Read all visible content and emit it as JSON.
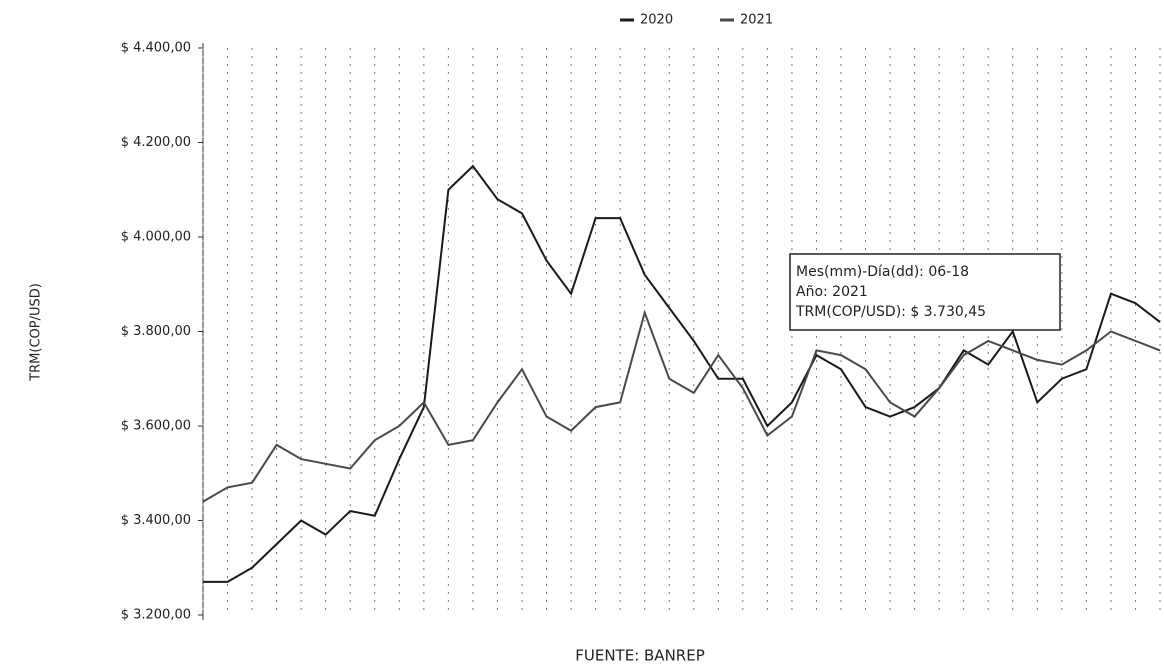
{
  "chart_data": {
    "type": "line",
    "y_label": "TRM(COP/USD)",
    "source": "FUENTE: BANREP",
    "categories": [
      null,
      null,
      null,
      null,
      null,
      null,
      null,
      null,
      null,
      null,
      null,
      null,
      null,
      null,
      null,
      null,
      null,
      null,
      null,
      null,
      null,
      null,
      null,
      null,
      null,
      null,
      null,
      null,
      null,
      null,
      null,
      null,
      null,
      null,
      null,
      null,
      null,
      null,
      null,
      null
    ],
    "series": [
      {
        "name": "2020",
        "color": "#1a1a1a",
        "values": [
          3270,
          3270,
          3300,
          3350,
          3400,
          3370,
          3420,
          3410,
          3530,
          3640,
          4100,
          4150,
          4080,
          4050,
          3950,
          3880,
          4040,
          4040,
          3920,
          3850,
          3780,
          3700,
          3700,
          3600,
          3650,
          3750,
          3720,
          3640,
          3620,
          3640,
          3680,
          3760,
          3730,
          3800,
          3650,
          3700,
          3720,
          3880,
          3860,
          3820
        ]
      },
      {
        "name": "2021",
        "color": "#4a4a4a",
        "values": [
          3440,
          3470,
          3480,
          3560,
          3530,
          3520,
          3510,
          3570,
          3600,
          3650,
          3560,
          3570,
          3650,
          3720,
          3620,
          3590,
          3640,
          3650,
          3840,
          3700,
          3670,
          3750,
          3680,
          3580,
          3620,
          3760,
          3750,
          3720,
          3650,
          3620,
          3680,
          3750,
          3780,
          3760,
          3740,
          3730,
          3760,
          3800,
          3780,
          3760
        ]
      }
    ],
    "ylim": [
      3200,
      4400
    ],
    "yticks": [
      {
        "value": 3200,
        "label": "$ 3.200,00"
      },
      {
        "value": 3400,
        "label": "$ 3.400,00"
      },
      {
        "value": 3600,
        "label": "$ 3.600,00"
      },
      {
        "value": 3800,
        "label": "$ 3.800,00"
      },
      {
        "value": 4000,
        "label": "$ 4.000,00"
      },
      {
        "value": 4200,
        "label": "$ 4.200,00"
      },
      {
        "value": 4400,
        "label": "$ 4.400,00"
      }
    ],
    "grid": true,
    "legend": "top",
    "tooltip": [
      "Mes(mm)-Día(dd): 06-18",
      "Año: 2021",
      "TRM(COP/USD): $ 3.730,45"
    ]
  }
}
